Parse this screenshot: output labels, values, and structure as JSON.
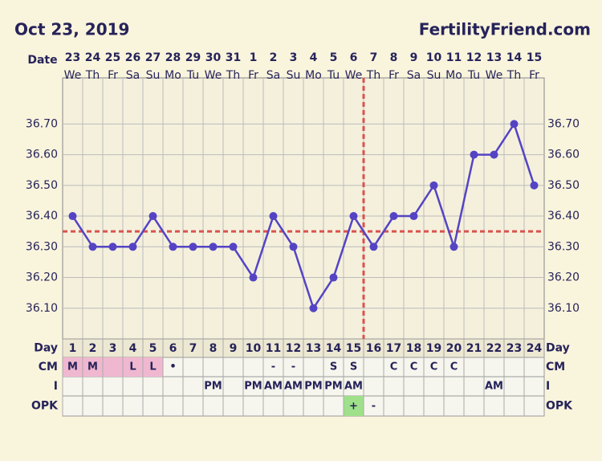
{
  "header": {
    "date": "Oct 23, 2019",
    "site": "FertilityFriend.com"
  },
  "row_labels": {
    "date": "Date",
    "day": "Day",
    "cm": "CM",
    "i": "I",
    "opk": "OPK"
  },
  "chart_data": {
    "type": "line",
    "dates": [
      "23",
      "24",
      "25",
      "26",
      "27",
      "28",
      "29",
      "30",
      "31",
      "1",
      "2",
      "3",
      "4",
      "5",
      "6",
      "7",
      "8",
      "9",
      "10",
      "11",
      "12",
      "13",
      "14",
      "15"
    ],
    "weekdays": [
      "We",
      "Th",
      "Fr",
      "Sa",
      "Su",
      "Mo",
      "Tu",
      "We",
      "Th",
      "Fr",
      "Sa",
      "Su",
      "Mo",
      "Tu",
      "We",
      "Th",
      "Fr",
      "Sa",
      "Su",
      "Mo",
      "Tu",
      "We",
      "Th",
      "Fr"
    ],
    "days": [
      1,
      2,
      3,
      4,
      5,
      6,
      7,
      8,
      9,
      10,
      11,
      12,
      13,
      14,
      15,
      16,
      17,
      18,
      19,
      20,
      21,
      22,
      23,
      24
    ],
    "series": [
      {
        "name": "Temperature",
        "color": "#5444c4",
        "values": [
          36.4,
          36.3,
          36.3,
          36.3,
          36.4,
          36.3,
          36.3,
          36.3,
          36.3,
          36.2,
          36.4,
          36.3,
          36.1,
          36.2,
          36.4,
          36.3,
          36.4,
          36.4,
          36.5,
          36.3,
          36.6,
          36.6,
          36.7,
          36.5
        ]
      }
    ],
    "ylim": [
      36.0,
      36.85
    ],
    "yticks": [
      {
        "value": 36.1,
        "label": "36.10"
      },
      {
        "value": 36.2,
        "label": "36.20"
      },
      {
        "value": 36.3,
        "label": "36.30"
      },
      {
        "value": 36.4,
        "label": "36.40"
      },
      {
        "value": 36.5,
        "label": "36.50"
      },
      {
        "value": 36.6,
        "label": "36.60"
      },
      {
        "value": 36.7,
        "label": "36.70"
      }
    ],
    "grid": true,
    "coverline": 36.35,
    "ovulation_day": 16,
    "marker_line_color": "#d9534f",
    "cm": [
      "M",
      "M",
      null,
      "L",
      "L",
      "•",
      null,
      null,
      null,
      null,
      "-",
      "-",
      null,
      "S",
      "S",
      null,
      "C",
      "C",
      "C",
      "C",
      null,
      null,
      null,
      null
    ],
    "period": [
      true,
      true,
      true,
      true,
      true,
      false,
      false,
      false,
      false,
      false,
      false,
      false,
      false,
      false,
      false,
      false,
      false,
      false,
      false,
      false,
      false,
      false,
      false,
      false
    ],
    "period_color": "#f0b8d0",
    "intercourse": [
      null,
      null,
      null,
      null,
      null,
      null,
      null,
      "PM",
      null,
      "PM",
      "AM",
      "AM",
      "PM",
      "PM",
      "AM",
      null,
      null,
      null,
      null,
      null,
      null,
      "AM",
      null,
      null
    ],
    "opk": [
      null,
      null,
      null,
      null,
      null,
      null,
      null,
      null,
      null,
      null,
      null,
      null,
      null,
      null,
      "+",
      "-",
      null,
      null,
      null,
      null,
      null,
      null,
      null,
      null
    ],
    "opk_positive_color": "#9fe08a"
  }
}
